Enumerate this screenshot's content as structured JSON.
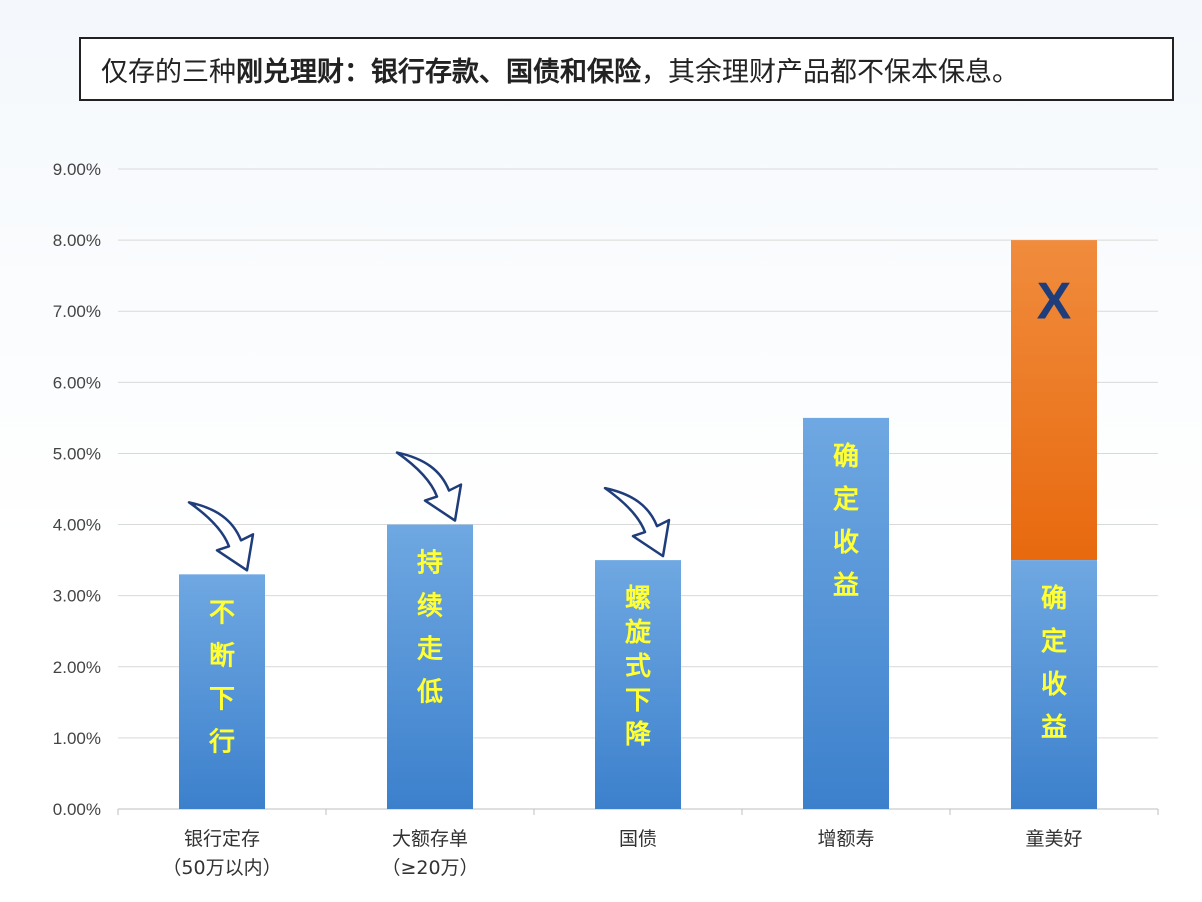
{
  "header": {
    "part1": "仅存的三种",
    "part2": "刚兑理财：银行存款、国债和保险",
    "part3": "，其余理财产品都不保本保息。"
  },
  "chart_data": {
    "type": "bar",
    "categories": [
      [
        "银行定存",
        "（50万以内）"
      ],
      [
        "大额存单",
        "（≥20万）"
      ],
      [
        "国债"
      ],
      [
        "增额寿"
      ],
      [
        "童美好"
      ]
    ],
    "values": [
      3.3,
      4.0,
      3.5,
      5.5,
      3.5
    ],
    "stack_top": [
      null,
      null,
      null,
      null,
      8.0
    ],
    "stack_top_label": "X",
    "bar_labels": [
      "不断下行",
      "持续走低",
      "螺旋式下降",
      "确定收益",
      "确定收益"
    ],
    "down_arrows": [
      true,
      true,
      true,
      false,
      false
    ],
    "ylim": [
      0,
      9
    ],
    "yticks": [
      "0.00%",
      "1.00%",
      "2.00%",
      "3.00%",
      "4.00%",
      "5.00%",
      "6.00%",
      "7.00%",
      "8.00%",
      "9.00%"
    ],
    "grid": true,
    "colors": {
      "base": "#4a8fd6",
      "top": "#ee7a22",
      "label": "#ffff33",
      "arrow": "#1f3d7a"
    }
  }
}
